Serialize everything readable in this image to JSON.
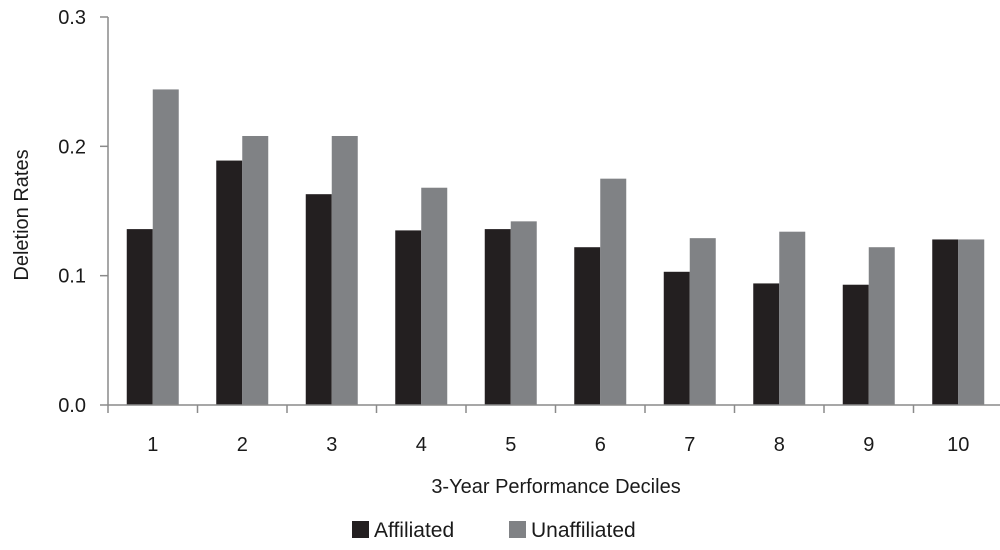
{
  "chart_data": {
    "type": "bar",
    "title": "",
    "xlabel": "3-Year Performance Deciles",
    "ylabel": "Deletion Rates",
    "categories": [
      "1",
      "2",
      "3",
      "4",
      "5",
      "6",
      "7",
      "8",
      "9",
      "10"
    ],
    "series": [
      {
        "name": "Affiliated",
        "color": "#231f20",
        "values": [
          0.136,
          0.189,
          0.163,
          0.135,
          0.136,
          0.122,
          0.103,
          0.094,
          0.093,
          0.128
        ]
      },
      {
        "name": "Unaffiliated",
        "color": "#808285",
        "values": [
          0.244,
          0.208,
          0.208,
          0.168,
          0.142,
          0.175,
          0.129,
          0.134,
          0.122,
          0.128
        ]
      }
    ],
    "ylim": [
      0,
      0.3
    ],
    "yticks": [
      "0.0",
      "0.1",
      "0.2",
      "0.3"
    ],
    "grid": false,
    "legend_position": "bottom-center"
  }
}
